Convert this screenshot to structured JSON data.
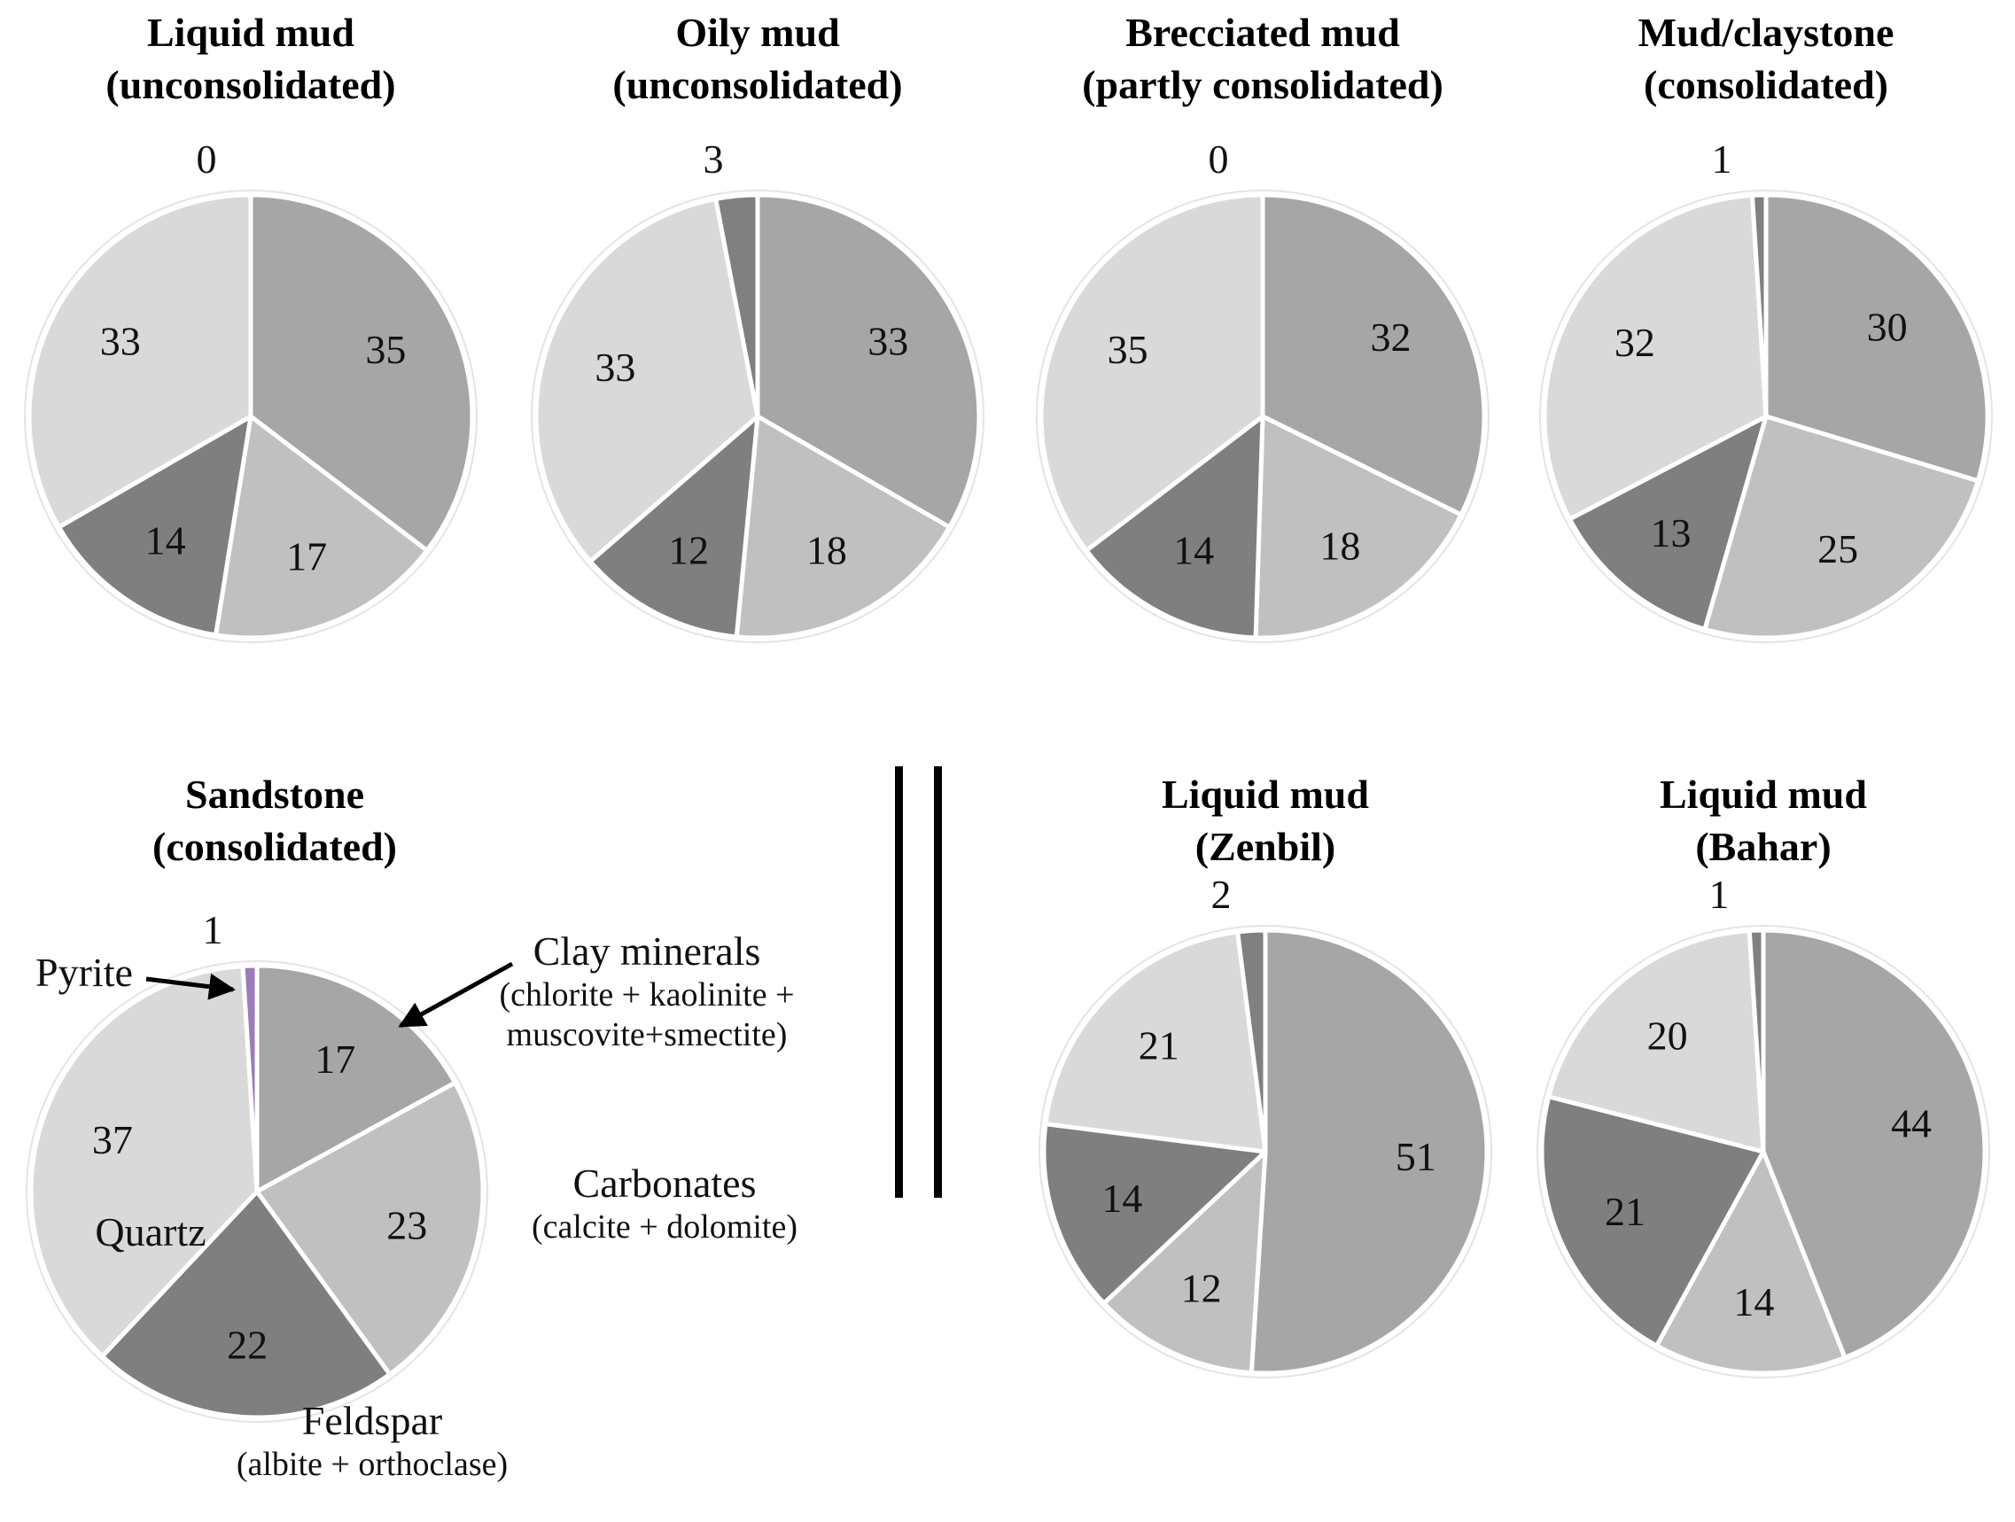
{
  "figure": {
    "background": "#ffffff",
    "text_color": "#111111",
    "divider": "double-vertical-black-bars"
  },
  "palette": {
    "clay_minerals": "#a6a6a6",
    "carbonates": "#c0c0c0",
    "feldspar": "#7f7f7f",
    "quartz": "#d9d9d9",
    "pyrite_gray": "#808080",
    "pyrite_purple": "#9b7bb8",
    "slice_gap_stroke": "#ffffff",
    "outer_ring": "#e4e4e4"
  },
  "chart_data": [
    {
      "type": "pie",
      "title_lines": [
        "Liquid mud",
        "(unconsolidated)"
      ],
      "categories": [
        "Clay minerals",
        "Carbonates",
        "Feldspar",
        "Quartz",
        "Pyrite"
      ],
      "values": [
        35,
        17,
        14,
        33,
        0
      ],
      "colors": [
        "#a6a6a6",
        "#c0c0c0",
        "#7f7f7f",
        "#d9d9d9",
        "#808080"
      ],
      "outside_label_index": 4,
      "top_label": "0",
      "legend_position": "none"
    },
    {
      "type": "pie",
      "title_lines": [
        "Oily mud",
        "(unconsolidated)"
      ],
      "categories": [
        "Clay minerals",
        "Carbonates",
        "Feldspar",
        "Quartz",
        "Pyrite"
      ],
      "values": [
        33,
        18,
        12,
        33,
        3
      ],
      "colors": [
        "#a6a6a6",
        "#c0c0c0",
        "#7f7f7f",
        "#d9d9d9",
        "#808080"
      ],
      "outside_label_index": 4,
      "top_label": "3",
      "legend_position": "none"
    },
    {
      "type": "pie",
      "title_lines": [
        "Brecciated mud",
        "(partly consolidated)"
      ],
      "categories": [
        "Clay minerals",
        "Carbonates",
        "Feldspar",
        "Quartz",
        "Pyrite"
      ],
      "values": [
        32,
        18,
        14,
        35,
        0
      ],
      "colors": [
        "#a6a6a6",
        "#c0c0c0",
        "#7f7f7f",
        "#d9d9d9",
        "#808080"
      ],
      "outside_label_index": 4,
      "top_label": "0",
      "legend_position": "none"
    },
    {
      "type": "pie",
      "title_lines": [
        "Mud/claystone",
        "(consolidated)"
      ],
      "categories": [
        "Clay minerals",
        "Carbonates",
        "Feldspar",
        "Quartz",
        "Pyrite"
      ],
      "values": [
        30,
        25,
        13,
        32,
        1
      ],
      "colors": [
        "#a6a6a6",
        "#c0c0c0",
        "#7f7f7f",
        "#d9d9d9",
        "#808080"
      ],
      "outside_label_index": 4,
      "top_label": "1",
      "legend_position": "none"
    },
    {
      "type": "pie",
      "title_lines": [
        "Sandstone",
        "(consolidated)"
      ],
      "categories": [
        "Clay minerals",
        "Carbonates",
        "Feldspar",
        "Quartz",
        "Pyrite"
      ],
      "values": [
        17,
        23,
        22,
        37,
        1
      ],
      "colors": [
        "#a6a6a6",
        "#c0c0c0",
        "#7f7f7f",
        "#d9d9d9",
        "#9b7bb8"
      ],
      "outside_label_index": 4,
      "top_label": "1",
      "legend_position": "annotated-callouts",
      "annotations": {
        "pyrite": "Pyrite",
        "clay_line1": "Clay minerals",
        "clay_line2": "(chlorite + kaolinite +",
        "clay_line3": "muscovite+smectite)",
        "carbonates_line1": "Carbonates",
        "carbonates_line2": "(calcite + dolomite)",
        "feldspar_line1": "Feldspar",
        "feldspar_line2": "(albite + orthoclase)",
        "quartz": "Quartz"
      }
    },
    {
      "type": "pie",
      "title_lines": [
        "Liquid mud",
        "(Zenbil)"
      ],
      "categories": [
        "Clay minerals",
        "Carbonates",
        "Feldspar",
        "Quartz",
        "Pyrite"
      ],
      "values": [
        51,
        12,
        14,
        21,
        2
      ],
      "colors": [
        "#a6a6a6",
        "#c0c0c0",
        "#7f7f7f",
        "#d9d9d9",
        "#808080"
      ],
      "outside_label_index": 4,
      "top_label": "2",
      "legend_position": "none"
    },
    {
      "type": "pie",
      "title_lines": [
        "Liquid mud",
        "(Bahar)"
      ],
      "categories": [
        "Clay minerals",
        "Carbonates",
        "Feldspar",
        "Quartz",
        "Pyrite"
      ],
      "values": [
        44,
        14,
        21,
        20,
        1
      ],
      "colors": [
        "#a6a6a6",
        "#c0c0c0",
        "#7f7f7f",
        "#d9d9d9",
        "#808080"
      ],
      "outside_label_index": 4,
      "top_label": "1",
      "legend_position": "none"
    }
  ]
}
